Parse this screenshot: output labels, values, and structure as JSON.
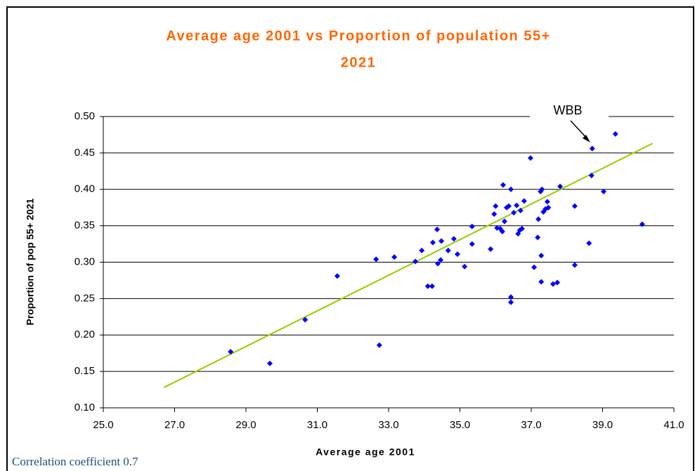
{
  "chart_data": {
    "type": "scatter",
    "title": "Average age 2001 vs Proportion of population 55+",
    "title_line2": "2021",
    "x_label": "Average age 2001",
    "y_label": "Proportion of pop 55+ 2021",
    "annotation": "WBB",
    "footnote": "Correlation coefficient 0.7",
    "color": "#0000ff",
    "grid": true,
    "xlim": [
      25,
      41
    ],
    "ylim": [
      0.1,
      0.5
    ],
    "xticks": [
      {
        "value": 25,
        "label": "25.0"
      },
      {
        "value": 27,
        "label": "27.0"
      },
      {
        "value": 29,
        "label": "29.0"
      },
      {
        "value": 31,
        "label": "31.0"
      },
      {
        "value": 33,
        "label": "33.0"
      },
      {
        "value": 35,
        "label": "35.0"
      },
      {
        "value": 37,
        "label": "37.0"
      },
      {
        "value": 39,
        "label": "39.0"
      },
      {
        "value": 41,
        "label": "41.0"
      }
    ],
    "yticks": [
      {
        "value": 0.1,
        "label": "0.10"
      },
      {
        "value": 0.15,
        "label": "0.15"
      },
      {
        "value": 0.2,
        "label": "0.20"
      },
      {
        "value": 0.25,
        "label": "0.25"
      },
      {
        "value": 0.3,
        "label": "0.30"
      },
      {
        "value": 0.35,
        "label": "0.35"
      },
      {
        "value": 0.4,
        "label": "0.40"
      },
      {
        "value": 0.45,
        "label": "0.45"
      },
      {
        "value": 0.5,
        "label": "0.50"
      }
    ],
    "x": [
      28.57,
      29.67,
      30.66,
      31.56,
      32.74,
      32.65,
      33.16,
      33.75,
      33.93,
      34.1,
      34.22,
      34.24,
      34.36,
      34.38,
      34.46,
      34.48,
      34.67,
      34.83,
      34.93,
      35.13,
      35.34,
      35.34,
      35.86,
      36.0,
      35.96,
      36.04,
      36.13,
      36.19,
      36.21,
      36.25,
      36.31,
      36.37,
      36.43,
      36.43,
      36.43,
      36.51,
      36.59,
      36.63,
      36.68,
      36.74,
      36.8,
      36.7,
      36.98,
      37.08,
      37.18,
      37.2,
      37.26,
      37.3,
      37.28,
      37.28,
      37.34,
      37.4,
      37.48,
      37.45,
      37.61,
      37.73,
      37.81,
      38.62,
      38.22,
      38.22,
      38.69,
      38.71,
      39.03,
      39.36,
      40.11
    ],
    "values": [
      0.177,
      0.161,
      0.221,
      0.281,
      0.186,
      0.304,
      0.307,
      0.301,
      0.316,
      0.267,
      0.267,
      0.327,
      0.345,
      0.298,
      0.303,
      0.329,
      0.316,
      0.332,
      0.311,
      0.294,
      0.325,
      0.349,
      0.318,
      0.377,
      0.366,
      0.347,
      0.346,
      0.342,
      0.406,
      0.356,
      0.375,
      0.377,
      0.4,
      0.252,
      0.245,
      0.368,
      0.378,
      0.339,
      0.344,
      0.346,
      0.384,
      0.371,
      0.443,
      0.293,
      0.334,
      0.359,
      0.397,
      0.4,
      0.309,
      0.273,
      0.369,
      0.373,
      0.375,
      0.383,
      0.27,
      0.272,
      0.404,
      0.326,
      0.377,
      0.296,
      0.419,
      0.456,
      0.397,
      0.476,
      0.352
    ],
    "trendline": {
      "color": "#99cc00",
      "x": [
        26.7,
        40.4
      ],
      "y": [
        0.128,
        0.463
      ]
    }
  }
}
